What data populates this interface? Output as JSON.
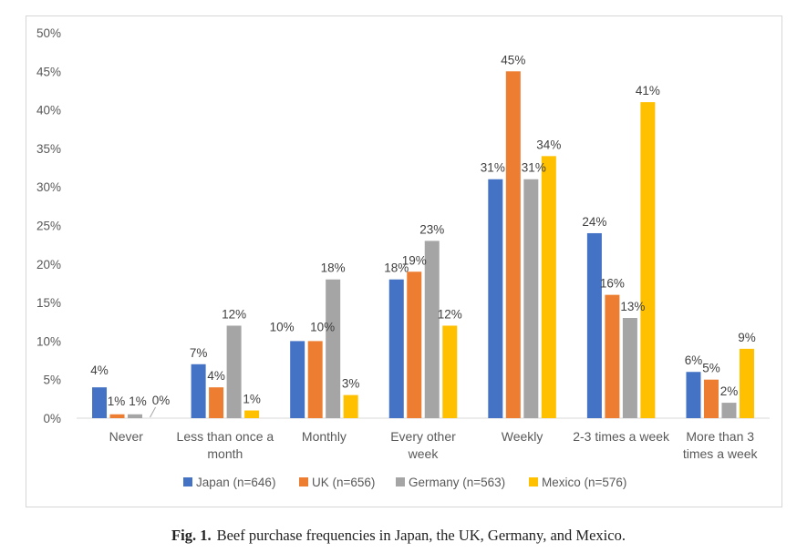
{
  "chart_data": {
    "type": "bar",
    "categories": [
      [
        "Never"
      ],
      [
        "Less than once a",
        "month"
      ],
      [
        "Monthly"
      ],
      [
        "Every other",
        "week"
      ],
      [
        "Weekly"
      ],
      [
        "2-3 times a week"
      ],
      [
        "More than 3",
        "times a week"
      ]
    ],
    "series": [
      {
        "name": "Japan (n=646)",
        "color": "#4472C4",
        "values": [
          4,
          7,
          10,
          18,
          31,
          24,
          6
        ],
        "labels": [
          "4%",
          "7%",
          "10%",
          "18%",
          "31%",
          "24%",
          "6%"
        ]
      },
      {
        "name": "UK (n=656)",
        "color": "#ED7D31",
        "values": [
          0.5,
          4,
          10,
          19,
          45,
          16,
          5
        ],
        "labels": [
          "1%",
          "4%",
          "10%",
          "19%",
          "45%",
          "16%",
          "5%"
        ]
      },
      {
        "name": "Germany (n=563)",
        "color": "#A5A5A5",
        "values": [
          0.5,
          12,
          18,
          23,
          31,
          13,
          2
        ],
        "labels": [
          "1%",
          "12%",
          "18%",
          "23%",
          "31%",
          "13%",
          "2%"
        ]
      },
      {
        "name": "Mexico (n=576)",
        "color": "#FFC000",
        "values": [
          0,
          1,
          3,
          12,
          34,
          41,
          9
        ],
        "labels": [
          "0%",
          "1%",
          "3%",
          "12%",
          "34%",
          "41%",
          "9%"
        ]
      }
    ],
    "y_ticks": [
      "0%",
      "5%",
      "10%",
      "15%",
      "20%",
      "25%",
      "30%",
      "35%",
      "40%",
      "45%",
      "50%"
    ],
    "ylim": [
      0,
      50
    ],
    "legend_position": "bottom",
    "grid": false
  },
  "caption": {
    "label": "Fig. 1.",
    "text": "Beef purchase frequencies in Japan, the UK, Germany, and Mexico."
  }
}
